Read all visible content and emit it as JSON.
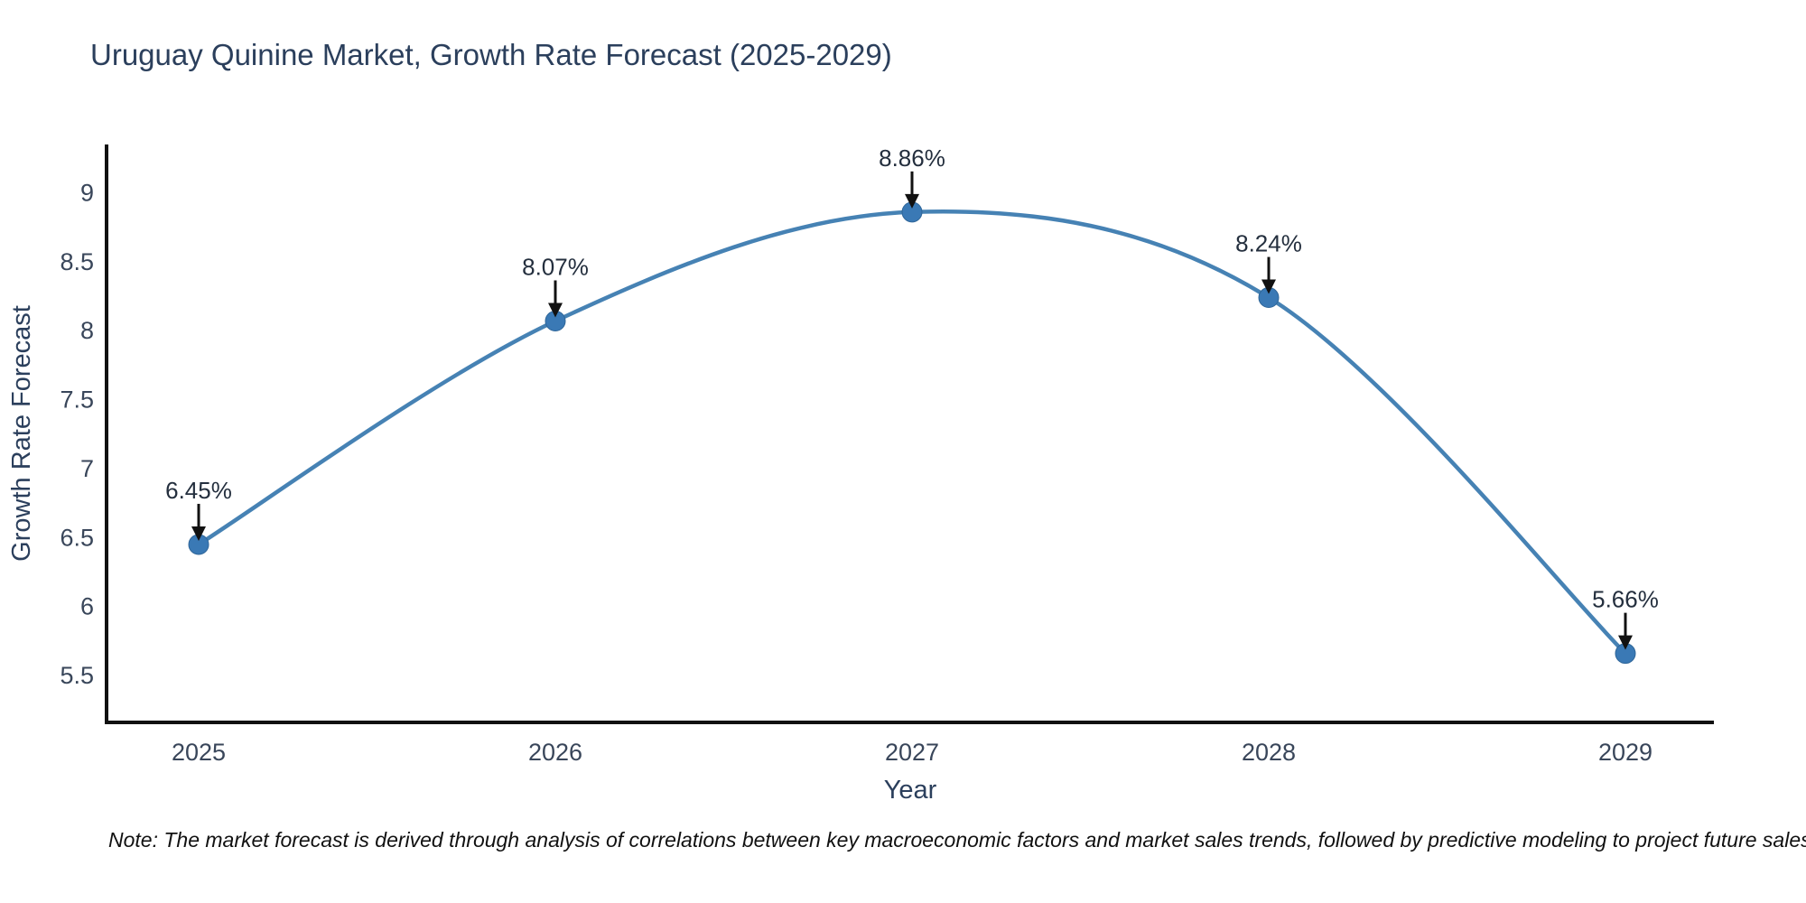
{
  "page": {
    "note": "Note: The market forecast is derived through analysis of correlations between key macroeconomic factors and market sales trends, followed by predictive modeling to project future sales"
  },
  "chart_data": {
    "type": "line",
    "title": "Uruguay Quinine Market, Growth Rate Forecast (2025-2029)",
    "xlabel": "Year",
    "ylabel": "Growth Rate Forecast",
    "categories": [
      "2025",
      "2026",
      "2027",
      "2028",
      "2029"
    ],
    "series": [
      {
        "name": "Growth Rate Forecast",
        "values": [
          6.45,
          8.07,
          8.86,
          8.24,
          5.66
        ]
      }
    ],
    "point_labels": [
      "6.45%",
      "8.07%",
      "8.86%",
      "8.24%",
      "5.66%"
    ],
    "y_ticks": [
      {
        "label": "9",
        "value": 9.0
      },
      {
        "label": "8.5",
        "value": 8.5
      },
      {
        "label": "8",
        "value": 8.0
      },
      {
        "label": "7.5",
        "value": 7.5
      },
      {
        "label": "7",
        "value": 7.0
      },
      {
        "label": "6.5",
        "value": 6.5
      },
      {
        "label": "6",
        "value": 6.0
      },
      {
        "label": "5.5",
        "value": 5.5
      }
    ],
    "ylim": [
      5.16,
      9.35
    ],
    "grid": false,
    "legend": "none",
    "line_shape": "spline",
    "colors": {
      "line": "#4682b4",
      "marker": "#3a79b5",
      "marker_edge": "#2f6699",
      "axis_line": "#111111",
      "title_text": "#2b3f5c",
      "tick_text": "#39465a",
      "annotation_text": "#242f3e",
      "arrow": "#111111",
      "note_text": "#111111"
    }
  }
}
